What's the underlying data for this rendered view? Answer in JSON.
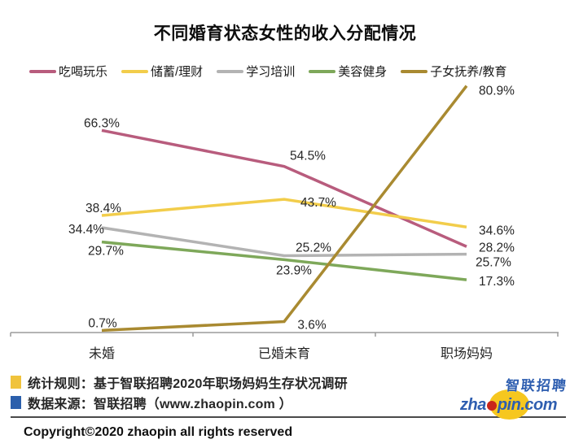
{
  "title": "不同婚育状态女性的收入分配情况",
  "chart_data": {
    "type": "line",
    "categories": [
      "未婚",
      "已婚未育",
      "职场妈妈"
    ],
    "series": [
      {
        "name": "吃喝玩乐",
        "color": "#b85c7d",
        "values": [
          66.3,
          54.5,
          28.2
        ]
      },
      {
        "name": "储蓄/理财",
        "color": "#f2cd4b",
        "values": [
          38.4,
          43.7,
          34.6
        ]
      },
      {
        "name": "学习培训",
        "color": "#b3b3b3",
        "values": [
          34.4,
          25.2,
          25.7
        ]
      },
      {
        "name": "美容健身",
        "color": "#7ea85a",
        "values": [
          29.7,
          23.9,
          17.3
        ]
      },
      {
        "name": "子女抚养/教育",
        "color": "#a98a31",
        "values": [
          0.7,
          3.6,
          80.9
        ]
      }
    ],
    "value_suffix": "%",
    "ylim": [
      0,
      85
    ],
    "grid": false,
    "legend_position": "top",
    "axis_color": "#9b9b9b",
    "label_color": "#262626"
  },
  "footer": {
    "notes": [
      {
        "marker_color": "#f0c33c",
        "text": "统计规则：基于智联招聘2020年职场妈妈生存状况调研"
      },
      {
        "marker_color": "#2b5fac",
        "text": "数据来源：智联招聘（www.zhaopin.com ）"
      }
    ],
    "copyright": "Copyright©2020  zhaopin all rights reserved"
  },
  "logo": {
    "brand_cn": "智联招聘",
    "brand_en_prefix": "zha",
    "brand_en_suffix": "pin.com"
  }
}
